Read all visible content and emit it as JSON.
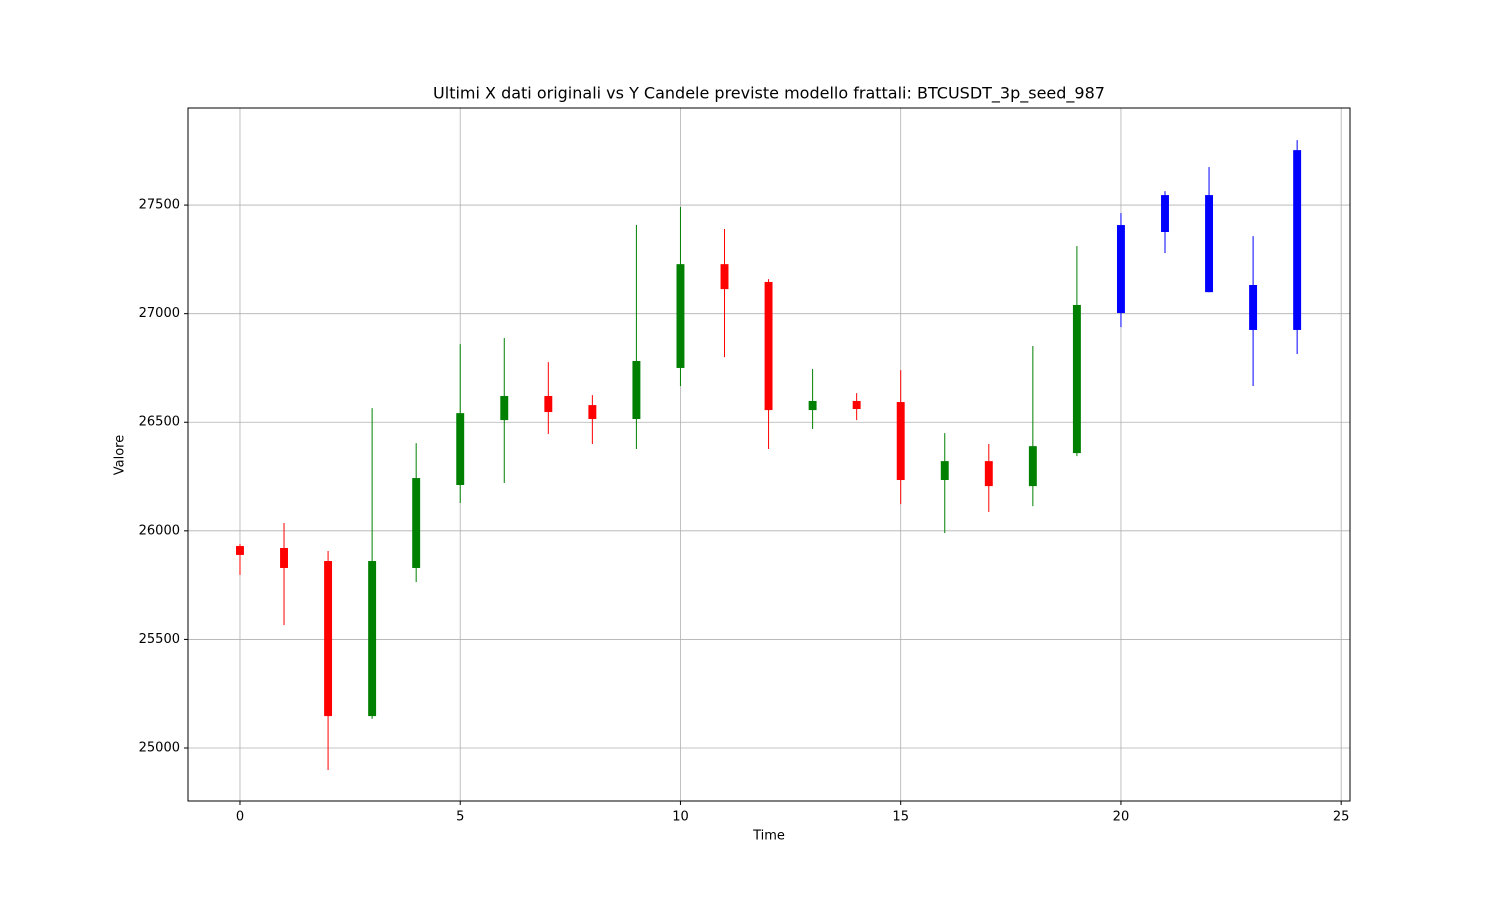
{
  "chart_data": {
    "type": "candlestick",
    "title": "Ultimi X dati originali vs Y Candele previste modello frattali: BTCUSDT_3p_seed_987",
    "x_label": "Time",
    "y_label": "Valore",
    "x": [
      0,
      1,
      2,
      3,
      4,
      5,
      6,
      7,
      8,
      9,
      10,
      11,
      12,
      13,
      14,
      15,
      16,
      17,
      18,
      19,
      20,
      21,
      22,
      23,
      24
    ],
    "open": [
      25930,
      25921,
      25861,
      25147,
      25829,
      26211,
      26510,
      26621,
      26579,
      26515,
      26750,
      27228,
      27146,
      26556,
      26598,
      26593,
      26234,
      26321,
      26206,
      26358,
      27003,
      27376,
      27546,
      27132,
      26925
    ],
    "high": [
      25939,
      26036,
      25907,
      26565,
      26404,
      26860,
      26888,
      26777,
      26625,
      27408,
      27491,
      27390,
      27159,
      26745,
      26634,
      26740,
      26450,
      26400,
      26851,
      27311,
      27463,
      27564,
      27675,
      27357,
      27799
    ],
    "low": [
      25797,
      25566,
      24899,
      25134,
      25764,
      26128,
      26220,
      26446,
      26400,
      26377,
      26667,
      26800,
      26377,
      26469,
      26510,
      26123,
      25990,
      26087,
      26114,
      26344,
      26938,
      27279,
      27099,
      26667,
      26814
    ],
    "close": [
      25889,
      25829,
      25147,
      25861,
      26243,
      26542,
      26621,
      26547,
      26515,
      26782,
      27228,
      27113,
      26556,
      26598,
      26561,
      26234,
      26321,
      26206,
      26390,
      27040,
      27408,
      27546,
      27099,
      26925,
      27753
    ],
    "colors": [
      "red",
      "red",
      "red",
      "green",
      "green",
      "green",
      "green",
      "red",
      "red",
      "green",
      "green",
      "red",
      "red",
      "green",
      "red",
      "red",
      "green",
      "red",
      "green",
      "green",
      "blue",
      "blue",
      "blue",
      "blue",
      "blue"
    ],
    "xlim": [
      -1.18,
      25.2
    ],
    "ylim": [
      24756,
      27947
    ],
    "xticks": [
      0,
      5,
      10,
      15,
      20,
      25
    ],
    "yticks": [
      25000,
      25500,
      26000,
      26500,
      27000,
      27500
    ],
    "grid": true
  }
}
